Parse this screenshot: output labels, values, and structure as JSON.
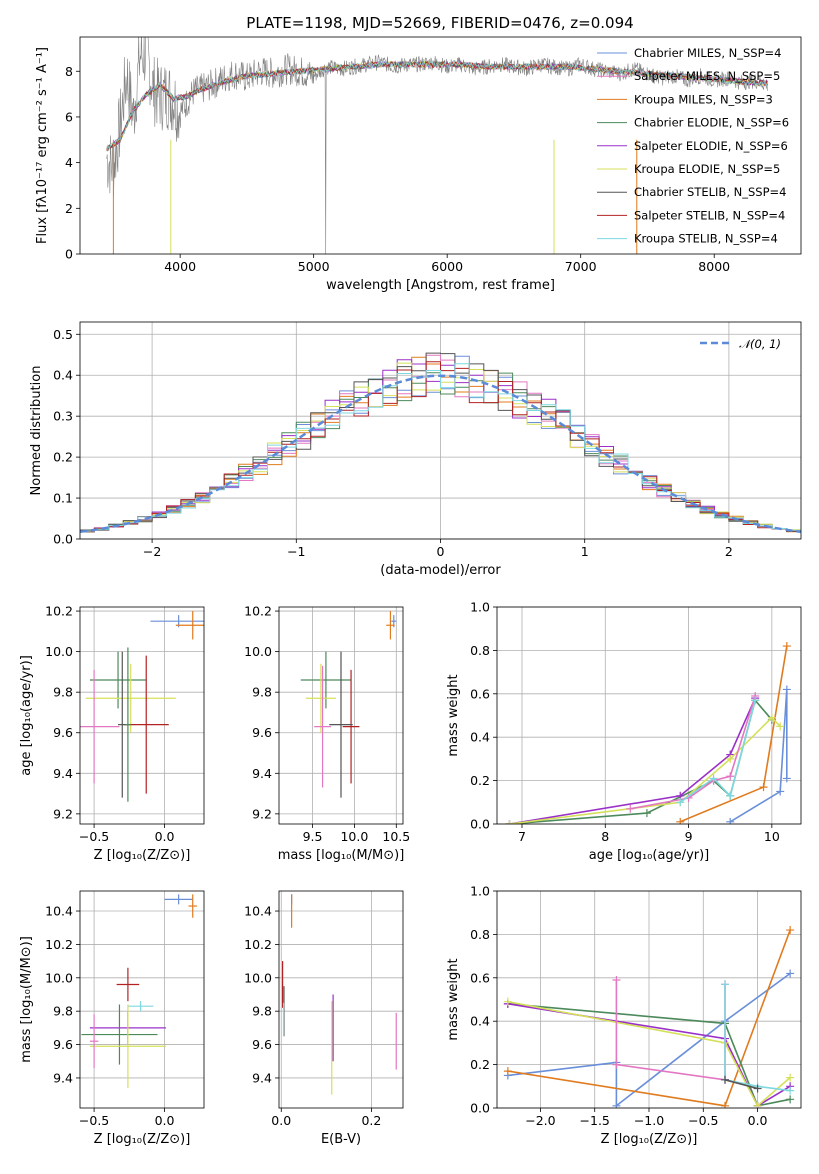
{
  "chart_data": [
    {
      "id": "spectrum",
      "type": "line",
      "title": "PLATE=1198, MJD=52669, FIBERID=0476, z=0.094",
      "xlabel": "wavelength [Angstrom, rest frame]",
      "ylabel": "Flux [fλ10⁻¹⁷ erg cm⁻² s⁻¹ A⁻¹]",
      "xlim": [
        3250,
        8650
      ],
      "ylim": [
        0,
        9.5
      ],
      "xticks": [
        4000,
        5000,
        6000,
        7000,
        8000
      ],
      "yticks": [
        0,
        2,
        4,
        6,
        8
      ],
      "grid": false,
      "legend_position": "right",
      "data_series": {
        "name": "data",
        "color": "#808080",
        "x": [
          3450,
          3500,
          3550,
          3600,
          3650,
          3700,
          3750,
          3800,
          3850,
          3900,
          3950,
          4000,
          4100,
          4200,
          4300,
          4400,
          4500,
          4600,
          4700,
          4800,
          4900,
          5000,
          5100,
          5200,
          5300,
          5400,
          5500,
          5600,
          5700,
          5800,
          5900,
          6000,
          6100,
          6200,
          6300,
          6400,
          6500,
          6600,
          6700,
          6800,
          6900,
          7000,
          7100,
          7200,
          7300,
          7400,
          7500,
          7600,
          7700,
          7800,
          7900,
          8000,
          8100,
          8200,
          8300,
          8400
        ],
        "y": [
          4.2,
          3.8,
          5.6,
          7.9,
          6.0,
          8.7,
          8.8,
          7.2,
          6.9,
          7.0,
          6.8,
          6.2,
          7.1,
          7.3,
          7.6,
          7.9,
          7.7,
          8.0,
          7.9,
          8.1,
          8.0,
          7.8,
          8.2,
          8.1,
          8.2,
          8.3,
          8.4,
          8.2,
          8.3,
          8.3,
          8.4,
          8.2,
          8.3,
          8.1,
          8.2,
          8.3,
          8.2,
          8.1,
          8.3,
          8.2,
          8.1,
          8.3,
          8.1,
          8.0,
          7.9,
          8.1,
          7.9,
          7.7,
          7.8,
          7.6,
          7.8,
          7.6,
          7.7,
          7.5,
          7.6,
          7.4
        ]
      },
      "model_series": [
        {
          "name": "Chabrier MILES, N_SSP=4",
          "color": "#6a8fd9"
        },
        {
          "name": "Salpeter MILES, N_SSP=5",
          "color": "#e377c2"
        },
        {
          "name": "Kroupa MILES, N_SSP=3",
          "color": "#e07b1f"
        },
        {
          "name": "Chabrier ELODIE, N_SSP=6",
          "color": "#4c8a5b"
        },
        {
          "name": "Salpeter ELODIE, N_SSP=6",
          "color": "#9b30c8"
        },
        {
          "name": "Kroupa ELODIE, N_SSP=5",
          "color": "#d5e05a"
        },
        {
          "name": "Chabrier STELIB, N_SSP=4",
          "color": "#555555"
        },
        {
          "name": "Salpeter STELIB, N_SSP=4",
          "color": "#b22222"
        },
        {
          "name": "Kroupa STELIB, N_SSP=4",
          "color": "#7ed8e0"
        }
      ],
      "model_curve": {
        "x": [
          3450,
          3550,
          3650,
          3750,
          3850,
          3950,
          4050,
          4150,
          4300,
          4500,
          4700,
          4900,
          5100,
          5300,
          5500,
          5700,
          5900,
          6100,
          6300,
          6500,
          6700,
          6900,
          7100,
          7300,
          7500,
          7700,
          7900,
          8100,
          8300,
          8400
        ],
        "y": [
          4.6,
          5.0,
          6.3,
          7.0,
          7.4,
          6.8,
          6.9,
          7.2,
          7.5,
          7.8,
          7.9,
          8.0,
          8.1,
          8.2,
          8.3,
          8.3,
          8.3,
          8.3,
          8.2,
          8.2,
          8.2,
          8.2,
          8.1,
          8.0,
          7.9,
          7.8,
          7.7,
          7.6,
          7.5,
          7.5
        ]
      }
    },
    {
      "id": "residuals",
      "type": "histogram",
      "xlabel": "(data-model)/error",
      "ylabel": "Normed distribution",
      "xlim": [
        -2.5,
        2.5
      ],
      "ylim": [
        0,
        0.53
      ],
      "xticks": [
        -2,
        -1,
        0,
        1,
        2
      ],
      "yticks": [
        0.0,
        0.1,
        0.2,
        0.3,
        0.4,
        0.5
      ],
      "grid": true,
      "legend_position": "top-right",
      "gaussian_label": "𝒩(0, 1)",
      "gaussian_color": "#5a8ad8",
      "bin_width": 0.1
    },
    {
      "id": "age-vs-Z",
      "type": "scatter",
      "xlabel": "Z [log₁₀(Z/Z⊙)]",
      "ylabel": "age  [log₁₀(age/yr)]",
      "xlim": [
        -0.6,
        0.28
      ],
      "ylim": [
        9.15,
        10.22
      ],
      "xticks": [
        -0.5,
        0.0
      ],
      "yticks": [
        9.2,
        9.4,
        9.6,
        9.8,
        10.0,
        10.2
      ],
      "grid": true,
      "errorbars": [
        {
          "series": "Chabrier MILES",
          "x": 0.1,
          "y": 10.15,
          "xerr": 0.2,
          "yerr": 0.03
        },
        {
          "series": "Kroupa MILES",
          "x": 0.2,
          "y": 10.13,
          "xerr": 0.12,
          "yerr": 0.07
        },
        {
          "series": "Chabrier ELODIE",
          "x": -0.33,
          "y": 9.86,
          "xerr": 0.2,
          "yerr": 0.14
        },
        {
          "series": "Kroupa ELODIE",
          "x": -0.24,
          "y": 9.77,
          "xerr": 0.32,
          "yerr": 0.17
        },
        {
          "series": "Salpeter MILES",
          "x": -0.5,
          "y": 9.63,
          "xerr": 0.18,
          "yerr": 0.28
        },
        {
          "series": "Salpeter STELIB",
          "x": -0.13,
          "y": 9.64,
          "xerr": 0.16,
          "yerr": 0.34
        },
        {
          "series": "Chabrier STELIB",
          "x": -0.3,
          "y": 9.64,
          "xerr": 0.03,
          "yerr": 0.36
        },
        {
          "series": "Chabrier ELODIE",
          "x": -0.26,
          "y": 9.64,
          "xerr": 0.02,
          "yerr": 0.38
        }
      ]
    },
    {
      "id": "age-vs-mass",
      "type": "scatter",
      "xlabel": "mass [log₁₀(M/M⊙)]",
      "ylabel": "",
      "xlim": [
        9.1,
        10.58
      ],
      "ylim": [
        9.15,
        10.22
      ],
      "xticks": [
        9.5,
        10.0,
        10.5
      ],
      "yticks": [
        9.2,
        9.4,
        9.6,
        9.8,
        10.0,
        10.2
      ],
      "grid": true,
      "errorbars": [
        {
          "series": "Chabrier MILES",
          "x": 10.47,
          "y": 10.15,
          "xerr": 0.03,
          "yerr": 0.03
        },
        {
          "series": "Kroupa MILES",
          "x": 10.43,
          "y": 10.13,
          "xerr": 0.05,
          "yerr": 0.07
        },
        {
          "series": "Chabrier ELODIE",
          "x": 9.66,
          "y": 9.86,
          "xerr": 0.3,
          "yerr": 0.14
        },
        {
          "series": "Kroupa ELODIE",
          "x": 9.6,
          "y": 9.77,
          "xerr": 0.18,
          "yerr": 0.17
        },
        {
          "series": "Salpeter STELIB",
          "x": 9.96,
          "y": 9.63,
          "xerr": 0.1,
          "yerr": 0.28
        },
        {
          "series": "Chabrier STELIB",
          "x": 9.84,
          "y": 9.64,
          "xerr": 0.14,
          "yerr": 0.36
        },
        {
          "series": "Salpeter MILES",
          "x": 9.62,
          "y": 9.63,
          "xerr": 0.1,
          "yerr": 0.3
        }
      ]
    },
    {
      "id": "weight-vs-age",
      "type": "line",
      "xlabel": "age  [log₁₀(age/yr)]",
      "ylabel": "mass weight",
      "xlim": [
        6.7,
        10.35
      ],
      "ylim": [
        0,
        1.0
      ],
      "xticks": [
        7,
        8,
        9,
        10
      ],
      "yticks": [
        0.0,
        0.2,
        0.4,
        0.6,
        0.8,
        1.0
      ],
      "grid": true,
      "series": [
        {
          "name": "Chabrier MILES",
          "x": [
            9.5,
            10.1,
            10.18,
            10.18
          ],
          "y": [
            0.01,
            0.15,
            0.62,
            0.21
          ]
        },
        {
          "name": "Kroupa MILES",
          "x": [
            8.9,
            9.9,
            10.18
          ],
          "y": [
            0.01,
            0.17,
            0.82
          ]
        },
        {
          "name": "Chabrier ELODIE",
          "x": [
            6.85,
            8.5,
            9.3,
            9.5,
            9.8,
            10.0
          ],
          "y": [
            0.0,
            0.05,
            0.2,
            0.13,
            0.57,
            0.48
          ]
        },
        {
          "name": "Salpeter ELODIE",
          "x": [
            6.85,
            8.9,
            9.5,
            9.8
          ],
          "y": [
            0.0,
            0.13,
            0.32,
            0.58
          ]
        },
        {
          "name": "Kroupa ELODIE",
          "x": [
            6.85,
            8.9,
            9.5,
            10.0,
            10.1
          ],
          "y": [
            0.0,
            0.1,
            0.3,
            0.49,
            0.45
          ]
        },
        {
          "name": "Salpeter MILES",
          "x": [
            8.3,
            9.0,
            9.3,
            9.5,
            9.8
          ],
          "y": [
            0.07,
            0.12,
            0.2,
            0.22,
            0.59
          ]
        },
        {
          "name": "Kroupa STELIB",
          "x": [
            8.9,
            9.3,
            9.5,
            9.8
          ],
          "y": [
            0.1,
            0.21,
            0.13,
            0.57
          ]
        }
      ]
    },
    {
      "id": "mass-vs-Z",
      "type": "scatter",
      "xlabel": "Z [log₁₀(Z/Z⊙)]",
      "ylabel": "mass [log₁₀(M/M⊙)]",
      "xlim": [
        -0.6,
        0.28
      ],
      "ylim": [
        9.22,
        10.52
      ],
      "xticks": [
        -0.5,
        0.0
      ],
      "yticks": [
        9.4,
        9.6,
        9.8,
        10.0,
        10.2,
        10.4
      ],
      "grid": true,
      "errorbars": [
        {
          "series": "Chabrier MILES",
          "x": 0.1,
          "y": 10.47,
          "xerr": 0.1,
          "yerr": 0.03
        },
        {
          "series": "Kroupa MILES",
          "x": 0.2,
          "y": 10.43,
          "xerr": 0.03,
          "yerr": 0.07
        },
        {
          "series": "Salpeter STELIB",
          "x": -0.26,
          "y": 9.96,
          "xerr": 0.08,
          "yerr": 0.1
        },
        {
          "series": "Kroupa STELIB",
          "x": -0.17,
          "y": 9.83,
          "xerr": 0.09,
          "yerr": 0.03
        },
        {
          "series": "Salpeter ELODIE",
          "x": -0.26,
          "y": 9.7,
          "xerr": 0.27,
          "yerr": 0.1
        },
        {
          "series": "Chabrier ELODIE",
          "x": -0.32,
          "y": 9.66,
          "xerr": 0.27,
          "yerr": 0.18
        },
        {
          "series": "Kroupa ELODIE",
          "x": -0.26,
          "y": 9.59,
          "xerr": 0.27,
          "yerr": 0.25
        },
        {
          "series": "Salpeter MILES",
          "x": -0.5,
          "y": 9.62,
          "xerr": 0.03,
          "yerr": 0.16
        }
      ]
    },
    {
      "id": "mass-vs-EBV",
      "type": "scatter",
      "xlabel": "E(B-V)",
      "ylabel": "",
      "xlim": [
        -0.005,
        0.27
      ],
      "ylim": [
        9.22,
        10.52
      ],
      "xticks": [
        0.0,
        0.2
      ],
      "yticks": [
        9.4,
        9.6,
        9.8,
        10.0,
        10.2,
        10.4
      ],
      "grid": true,
      "errorbars": [
        {
          "series": "Chabrier MILES",
          "x": 0.023,
          "y": 10.47,
          "yerr": 0.03
        },
        {
          "series": "Kroupa MILES",
          "x": 0.023,
          "y": 10.4,
          "yerr": 0.1
        },
        {
          "series": "Salpeter STELIB",
          "x": 0.003,
          "y": 9.96,
          "yerr": 0.14
        },
        {
          "series": "Chabrier STELIB",
          "x": 0.006,
          "y": 9.8,
          "yerr": 0.15
        },
        {
          "series": "Kroupa STELIB",
          "x": 0.005,
          "y": 9.75,
          "yerr": 0.1
        },
        {
          "series": "Salpeter ELODIE",
          "x": 0.115,
          "y": 9.7,
          "yerr": 0.2
        },
        {
          "series": "Kroupa ELODIE",
          "x": 0.112,
          "y": 9.58,
          "yerr": 0.28
        },
        {
          "series": "Salpeter MILES",
          "x": 0.255,
          "y": 9.62,
          "yerr": 0.17
        }
      ]
    },
    {
      "id": "weight-vs-Z",
      "type": "line",
      "xlabel": "Z [log₁₀(Z/Z⊙)]",
      "ylabel": "mass weight",
      "xlim": [
        -2.4,
        0.4
      ],
      "ylim": [
        0,
        1.0
      ],
      "xticks": [
        -2.0,
        -1.5,
        -1.0,
        -0.5,
        0.0
      ],
      "yticks": [
        0.0,
        0.2,
        0.4,
        0.6,
        0.8,
        1.0
      ],
      "grid": true,
      "series": [
        {
          "name": "Chabrier MILES",
          "x": [
            -2.3,
            -1.3,
            -1.3,
            -0.3,
            0.3
          ],
          "y": [
            0.15,
            0.21,
            0.01,
            0.4,
            0.62
          ]
        },
        {
          "name": "Kroupa MILES",
          "x": [
            -2.3,
            -0.3,
            0.3
          ],
          "y": [
            0.17,
            0.01,
            0.82
          ]
        },
        {
          "name": "Chabrier ELODIE",
          "x": [
            -2.3,
            -0.3,
            0.0,
            0.3
          ],
          "y": [
            0.48,
            0.39,
            0.01,
            0.04
          ]
        },
        {
          "name": "Salpeter ELODIE",
          "x": [
            -2.3,
            -0.3,
            0.0,
            0.3
          ],
          "y": [
            0.48,
            0.32,
            0.01,
            0.1
          ]
        },
        {
          "name": "Kroupa ELODIE",
          "x": [
            -2.3,
            -0.3,
            0.0,
            0.3
          ],
          "y": [
            0.49,
            0.3,
            0.01,
            0.14
          ]
        },
        {
          "name": "Salpeter MILES",
          "x": [
            -1.3,
            -1.3,
            -0.3,
            -0.3
          ],
          "y": [
            0.59,
            0.2,
            0.13,
            0.57
          ]
        },
        {
          "name": "Kroupa STELIB",
          "x": [
            -0.3,
            -0.3,
            0.0,
            0.3
          ],
          "y": [
            0.57,
            0.13,
            0.1,
            0.08
          ]
        },
        {
          "name": "Chabrier STELIB",
          "x": [
            -0.3,
            0.0
          ],
          "y": [
            0.13,
            0.09
          ]
        }
      ]
    }
  ]
}
